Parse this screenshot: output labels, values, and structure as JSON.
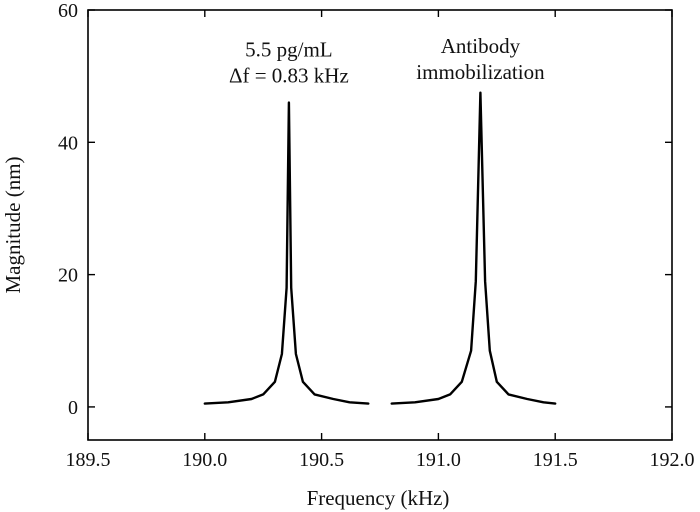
{
  "chart_data": {
    "type": "line",
    "title": "",
    "xlabel": "Frequency (kHz)",
    "ylabel": "Magnitude (nm)",
    "xlim": [
      189.5,
      192.0
    ],
    "ylim": [
      -5,
      60
    ],
    "xticks": [
      "189.5",
      "190.0",
      "190.5",
      "191.0",
      "191.5",
      "192.0"
    ],
    "xtick_values": [
      189.5,
      190.0,
      190.5,
      191.0,
      191.5,
      192.0
    ],
    "yticks": [
      "0",
      "20",
      "40",
      "60"
    ],
    "ytick_values": [
      0,
      20,
      40,
      60
    ],
    "grid": false,
    "line_color": "#000000",
    "series": [
      {
        "x": [
          190.0,
          190.1,
          190.2,
          190.25,
          190.3,
          190.33,
          190.35,
          190.36,
          190.37,
          190.39,
          190.42,
          190.47,
          190.55,
          190.62,
          190.7
        ],
        "y": [
          0.5,
          0.7,
          1.2,
          1.9,
          3.8,
          8.0,
          18.0,
          46.0,
          18.0,
          8.0,
          3.8,
          1.9,
          1.2,
          0.7,
          0.5
        ]
      },
      {
        "x": [
          190.8,
          190.9,
          191.0,
          191.05,
          191.1,
          191.14,
          191.16,
          191.18,
          191.2,
          191.22,
          191.25,
          191.3,
          191.38,
          191.45,
          191.5
        ],
        "y": [
          0.5,
          0.7,
          1.2,
          1.9,
          3.8,
          8.5,
          19.0,
          47.5,
          19.0,
          8.5,
          3.8,
          1.9,
          1.2,
          0.7,
          0.5
        ]
      }
    ],
    "annotations": [
      {
        "lines": [
          "5.5 pg/mL",
          "Δf = 0.83 kHz"
        ],
        "x": 190.36,
        "y": 53.0
      },
      {
        "lines": [
          "Antibody",
          "immobilization"
        ],
        "x": 191.18,
        "y": 53.5
      }
    ]
  }
}
